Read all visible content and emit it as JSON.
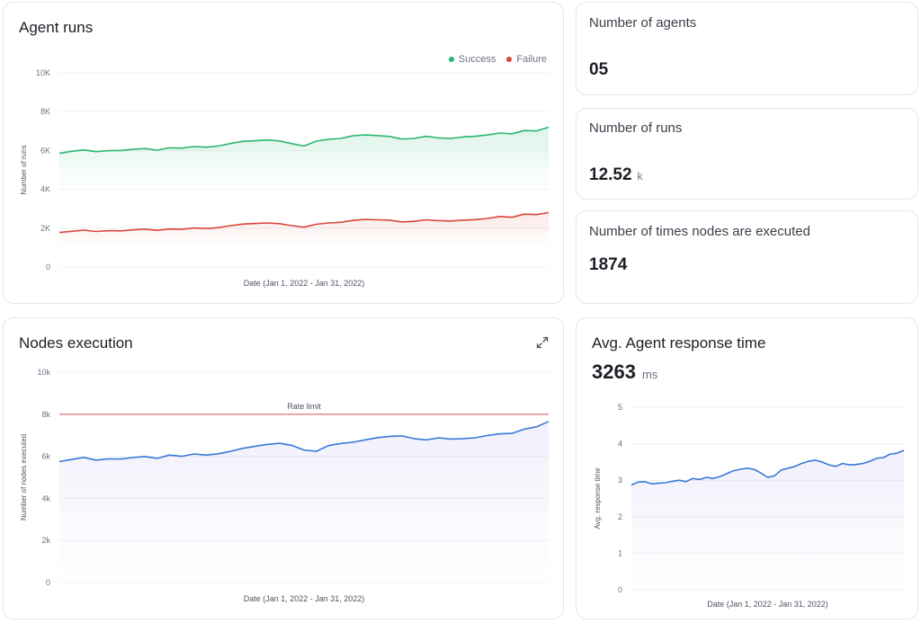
{
  "agent_runs": {
    "title": "Agent runs",
    "legend": {
      "success": "Success",
      "failure": "Failure"
    },
    "colors": {
      "success": "#2bb673",
      "failure": "#d9473b"
    }
  },
  "nodes_execution": {
    "title": "Nodes execution",
    "rate_limit_label": "Rate limit",
    "expand_icon": "expand-icon",
    "colors": {
      "line": "#3a78d8",
      "rate_limit": "#d9473b"
    }
  },
  "stats": {
    "agents": {
      "title": "Number of agents",
      "value": "05"
    },
    "runs": {
      "title": "Number of runs",
      "value": "12.52",
      "unit": "k"
    },
    "node_exec": {
      "title": "Number of times nodes are executed",
      "value": "1874"
    }
  },
  "response_time": {
    "title": "Avg. Agent response time",
    "value": "3263",
    "unit": "ms"
  },
  "chart_data": [
    {
      "type": "area",
      "title": "Agent runs",
      "xlabel": "Date (Jan 1, 2022 - Jan 31, 2022)",
      "ylabel": "Number of runs",
      "y_ticks": [
        "0",
        "2K",
        "4K",
        "6K",
        "8K",
        "10K"
      ],
      "ylim": [
        0,
        10000
      ],
      "grid": true,
      "legend_position": "top-right",
      "series": [
        {
          "name": "Success",
          "values": [
            5850,
            5960,
            6030,
            5940,
            5990,
            6000,
            6060,
            6100,
            6020,
            6140,
            6120,
            6200,
            6170,
            6230,
            6360,
            6470,
            6500,
            6540,
            6490,
            6350,
            6230,
            6480,
            6580,
            6620,
            6760,
            6800,
            6770,
            6720,
            6590,
            6620,
            6730,
            6650,
            6620,
            6700,
            6730,
            6800,
            6900,
            6860,
            7030,
            7010,
            7200
          ]
        },
        {
          "name": "Failure",
          "values": [
            1780,
            1840,
            1900,
            1830,
            1870,
            1860,
            1910,
            1950,
            1890,
            1960,
            1940,
            2010,
            1980,
            2030,
            2130,
            2210,
            2240,
            2270,
            2230,
            2130,
            2050,
            2200,
            2270,
            2300,
            2400,
            2450,
            2430,
            2410,
            2320,
            2350,
            2430,
            2390,
            2370,
            2410,
            2440,
            2500,
            2600,
            2560,
            2720,
            2700,
            2800
          ]
        }
      ]
    },
    {
      "type": "line",
      "title": "Nodes execution",
      "xlabel": "Date (Jan 1, 2022 - Jan 31, 2022)",
      "ylabel": "Number of nodes executed",
      "y_ticks": [
        "0",
        "2k",
        "4k",
        "6k",
        "8k",
        "10k"
      ],
      "ylim": [
        0,
        10000
      ],
      "grid": true,
      "annotations": [
        {
          "label": "Rate limit",
          "y": 8000
        }
      ],
      "series": [
        {
          "name": "",
          "values": [
            5750,
            5850,
            5950,
            5820,
            5880,
            5870,
            5940,
            5990,
            5900,
            6060,
            6000,
            6110,
            6060,
            6120,
            6240,
            6380,
            6480,
            6570,
            6620,
            6520,
            6300,
            6240,
            6510,
            6610,
            6670,
            6780,
            6890,
            6950,
            6970,
            6840,
            6780,
            6880,
            6820,
            6840,
            6880,
            6990,
            7070,
            7090,
            7290,
            7400,
            7660
          ]
        }
      ]
    },
    {
      "type": "area",
      "title": "Avg. Agent response time",
      "xlabel": "Date (Jan 1, 2022 - Jan 31, 2022)",
      "ylabel": "Avg. response time",
      "y_ticks": [
        "0",
        "1",
        "2",
        "3",
        "4",
        "5"
      ],
      "ylim": [
        0,
        5
      ],
      "grid": true,
      "series": [
        {
          "name": "",
          "values": [
            2.87,
            2.95,
            2.96,
            2.9,
            2.92,
            2.93,
            2.97,
            3.0,
            2.96,
            3.05,
            3.02,
            3.08,
            3.05,
            3.1,
            3.18,
            3.26,
            3.3,
            3.33,
            3.3,
            3.2,
            3.08,
            3.12,
            3.28,
            3.33,
            3.38,
            3.46,
            3.52,
            3.55,
            3.5,
            3.42,
            3.38,
            3.46,
            3.42,
            3.43,
            3.46,
            3.52,
            3.6,
            3.62,
            3.72,
            3.74,
            3.82
          ]
        }
      ]
    }
  ]
}
